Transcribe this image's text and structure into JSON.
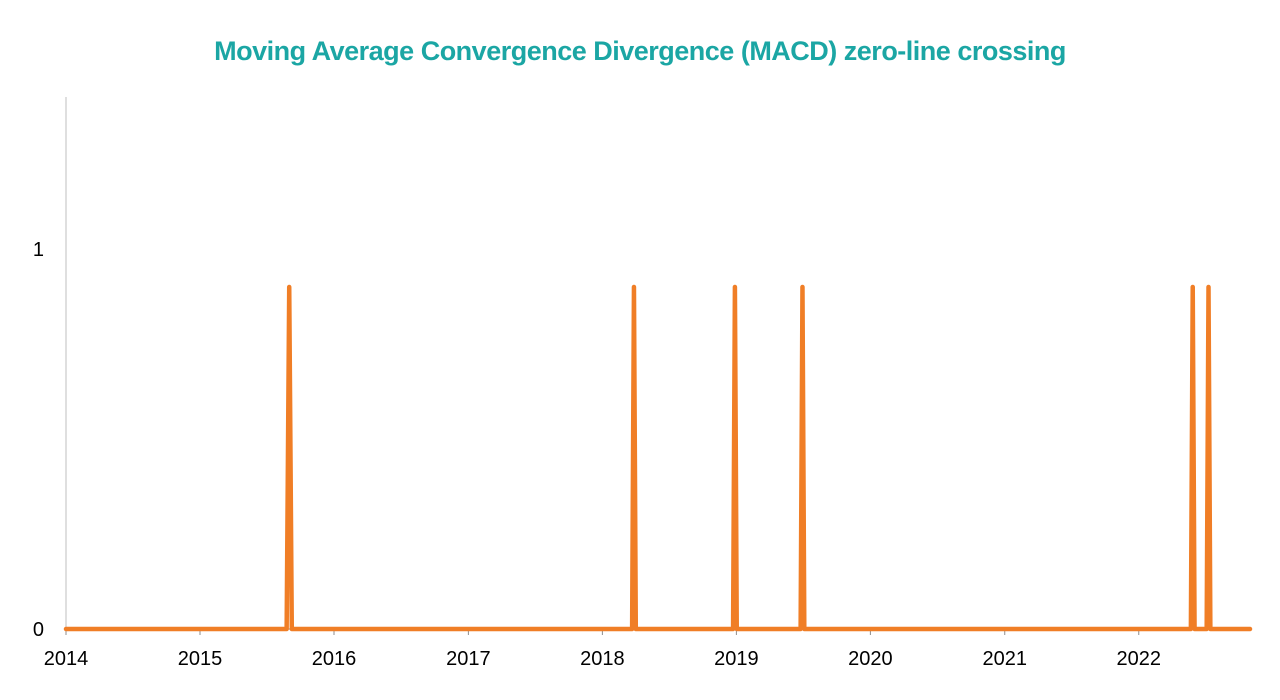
{
  "chart_data": {
    "type": "line",
    "title": "Moving Average Convergence Divergence (MACD) zero-line crossing",
    "x_axis": {
      "type": "date",
      "range": [
        "2014-01-01",
        "2022-10-31"
      ],
      "ticks": [
        "2014",
        "2015",
        "2016",
        "2017",
        "2018",
        "2019",
        "2020",
        "2021",
        "2022"
      ]
    },
    "y_axis": {
      "range": [
        0,
        1.4
      ],
      "ticks": [
        "0",
        "1"
      ]
    },
    "grid": false,
    "legend": "none",
    "series": [
      {
        "color": "#F07E26",
        "points": [
          {
            "x": "2014-01-01",
            "y": 0
          },
          {
            "x": "2015-08-25",
            "y": 0
          },
          {
            "x": "2015-09-01",
            "y": 0.9
          },
          {
            "x": "2015-09-08",
            "y": 0
          },
          {
            "x": "2018-03-23",
            "y": 0
          },
          {
            "x": "2018-03-28",
            "y": 0.9
          },
          {
            "x": "2018-04-02",
            "y": 0
          },
          {
            "x": "2018-12-23",
            "y": 0
          },
          {
            "x": "2018-12-28",
            "y": 0.9
          },
          {
            "x": "2019-01-02",
            "y": 0
          },
          {
            "x": "2019-06-25",
            "y": 0
          },
          {
            "x": "2019-06-30",
            "y": 0.9
          },
          {
            "x": "2019-07-05",
            "y": 0
          },
          {
            "x": "2022-05-23",
            "y": 0
          },
          {
            "x": "2022-05-28",
            "y": 0.9
          },
          {
            "x": "2022-06-02",
            "y": 0
          },
          {
            "x": "2022-07-05",
            "y": 0
          },
          {
            "x": "2022-07-10",
            "y": 0.9
          },
          {
            "x": "2022-07-15",
            "y": 0
          },
          {
            "x": "2022-10-31",
            "y": 0
          }
        ]
      }
    ]
  },
  "colors": {
    "title": "#1BA6A4",
    "axis": "#BFBFBF",
    "series": "#F07E26"
  }
}
